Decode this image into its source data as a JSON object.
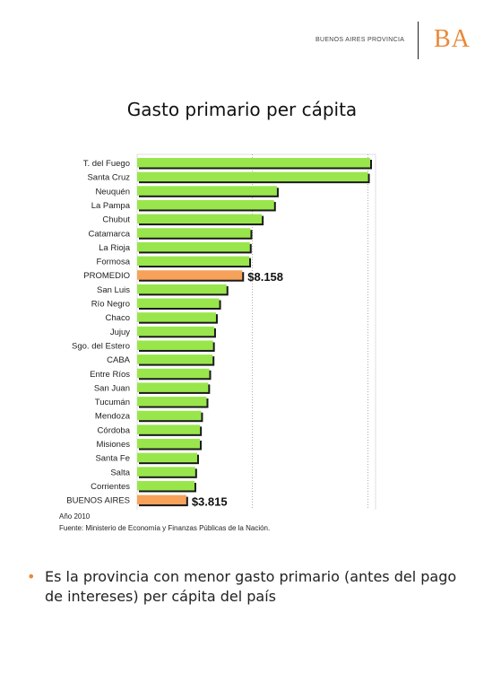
{
  "header": {
    "province_label": "BUENOS AIRES PROVINCIA",
    "logo_text": "BA"
  },
  "colors": {
    "bar": "#99e64c",
    "highlight": "#f7a25a",
    "logo": "#e8893a"
  },
  "chart_data": {
    "type": "bar",
    "orientation": "horizontal",
    "title": "Gasto primario per cápita",
    "categories": [
      "T. del Fuego",
      "Santa Cruz",
      "Neuquén",
      "La Pampa",
      "Chubut",
      "Catamarca",
      "La Rioja",
      "Formosa",
      "PROMEDIO",
      "San Luis",
      "Río Negro",
      "Chaco",
      "Jujuy",
      "Sgo. del Estero",
      "CABA",
      "Entre Ríos",
      "San Juan",
      "Tucumán",
      "Mendoza",
      "Córdoba",
      "Misiones",
      "Santa Fe",
      "Salta",
      "Corrientes",
      "BUENOS AIRES"
    ],
    "values": [
      18090,
      17920,
      10850,
      10630,
      9680,
      8800,
      8750,
      8700,
      8158,
      6940,
      6370,
      6120,
      5980,
      5890,
      5860,
      5600,
      5520,
      5390,
      4970,
      4880,
      4870,
      4660,
      4510,
      4450,
      3815
    ],
    "highlighted": [
      "PROMEDIO",
      "BUENOS AIRES"
    ],
    "value_labels": [
      {
        "category": "PROMEDIO",
        "text": "$8.158"
      },
      {
        "category": "BUENOS AIRES",
        "text": "$3.815"
      }
    ],
    "grid": true
  },
  "notes": {
    "year": "Año 2010",
    "source": "Fuente: Ministerio de Economía y Finanzas Públicas de la Nación."
  },
  "bullet": {
    "text": "Es la provincia con menor gasto primario (antes del pago de intereses) per cápita del país"
  }
}
